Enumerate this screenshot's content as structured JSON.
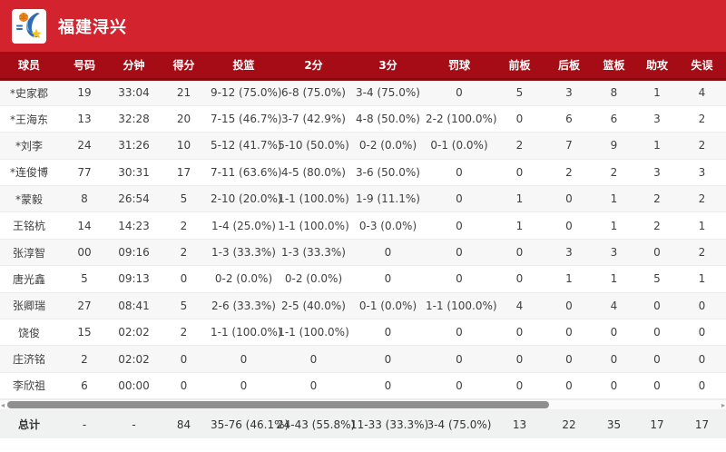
{
  "topbar": {
    "team_name": "福建浔兴"
  },
  "table": {
    "columns": [
      "球员",
      "号码",
      "分钟",
      "得分",
      "投篮",
      "2分",
      "3分",
      "罚球",
      "前板",
      "后板",
      "篮板",
      "助攻",
      "失误"
    ],
    "rows": [
      [
        "*史家郡",
        "19",
        "33:04",
        "21",
        "9-12 (75.0%)",
        "6-8 (75.0%)",
        "3-4 (75.0%)",
        "0",
        "5",
        "3",
        "8",
        "1",
        "4"
      ],
      [
        "*王海东",
        "13",
        "32:28",
        "20",
        "7-15 (46.7%)",
        "3-7 (42.9%)",
        "4-8 (50.0%)",
        "2-2 (100.0%)",
        "0",
        "6",
        "6",
        "3",
        "2"
      ],
      [
        "*刘李",
        "24",
        "31:26",
        "10",
        "5-12 (41.7%)",
        "5-10 (50.0%)",
        "0-2 (0.0%)",
        "0-1 (0.0%)",
        "2",
        "7",
        "9",
        "1",
        "2"
      ],
      [
        "*连俊博",
        "77",
        "30:31",
        "17",
        "7-11 (63.6%)",
        "4-5 (80.0%)",
        "3-6 (50.0%)",
        "0",
        "0",
        "2",
        "2",
        "3",
        "3"
      ],
      [
        "*蒙毅",
        "8",
        "26:54",
        "5",
        "2-10 (20.0%)",
        "1-1 (100.0%)",
        "1-9 (11.1%)",
        "0",
        "1",
        "0",
        "1",
        "2",
        "2"
      ],
      [
        "王铭杭",
        "14",
        "14:23",
        "2",
        "1-4 (25.0%)",
        "1-1 (100.0%)",
        "0-3 (0.0%)",
        "0",
        "1",
        "0",
        "1",
        "2",
        "1"
      ],
      [
        "张淳智",
        "00",
        "09:16",
        "2",
        "1-3 (33.3%)",
        "1-3 (33.3%)",
        "0",
        "0",
        "0",
        "3",
        "3",
        "0",
        "2"
      ],
      [
        "唐光鑫",
        "5",
        "09:13",
        "0",
        "0-2 (0.0%)",
        "0-2 (0.0%)",
        "0",
        "0",
        "0",
        "1",
        "1",
        "5",
        "1"
      ],
      [
        "张卿瑞",
        "27",
        "08:41",
        "5",
        "2-6 (33.3%)",
        "2-5 (40.0%)",
        "0-1 (0.0%)",
        "1-1 (100.0%)",
        "4",
        "0",
        "4",
        "0",
        "0"
      ],
      [
        "饶俊",
        "15",
        "02:02",
        "2",
        "1-1 (100.0%)",
        "1-1 (100.0%)",
        "0",
        "0",
        "0",
        "0",
        "0",
        "0",
        "0"
      ],
      [
        "庄济铭",
        "2",
        "02:02",
        "0",
        "0",
        "0",
        "0",
        "0",
        "0",
        "0",
        "0",
        "0",
        "0"
      ],
      [
        "李欣祖",
        "6",
        "00:00",
        "0",
        "0",
        "0",
        "0",
        "0",
        "0",
        "0",
        "0",
        "0",
        "0"
      ]
    ],
    "total": [
      "总计",
      "-",
      "-",
      "84",
      "35-76 (46.1%)",
      "24-43 (55.8%)",
      "11-33 (33.3%)",
      "3-4 (75.0%)",
      "13",
      "22",
      "35",
      "17",
      "17"
    ]
  },
  "scrollbar": {
    "left_arrow": "◂",
    "right_arrow": "▸"
  },
  "colors": {
    "topbar_red": "#d2232e",
    "header_dark_red": "#a60c15",
    "header_border_red": "#870a0f",
    "stripe_gray": "#f7f7f7",
    "total_row_gray": "#f0f1f1"
  }
}
